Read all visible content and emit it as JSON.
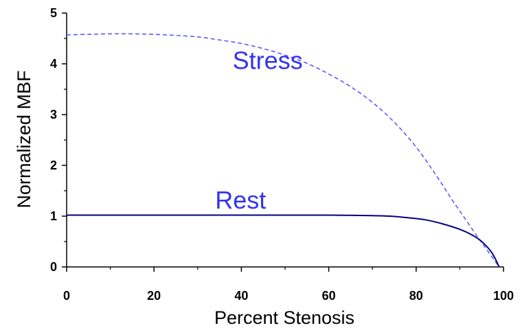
{
  "chart_data": {
    "type": "line",
    "title": "",
    "xlabel": "Percent Stenosis",
    "ylabel": "Normalized MBF",
    "xlim": [
      0,
      100
    ],
    "ylim": [
      0,
      5
    ],
    "xticks": [
      "0",
      "20",
      "40",
      "60",
      "80",
      "100"
    ],
    "yticks": [
      "0",
      "1",
      "2",
      "3",
      "4",
      "5"
    ],
    "grid": false,
    "series": [
      {
        "name": "Stress",
        "color": "#5a5aff",
        "line_style": "dashed",
        "x": [
          0,
          5,
          10,
          15,
          20,
          25,
          30,
          35,
          40,
          45,
          50,
          55,
          60,
          65,
          70,
          75,
          80,
          85,
          88,
          90,
          92,
          94,
          96,
          98,
          99
        ],
        "y": [
          4.57,
          4.58,
          4.59,
          4.59,
          4.58,
          4.56,
          4.53,
          4.47,
          4.4,
          4.3,
          4.17,
          4.01,
          3.8,
          3.55,
          3.24,
          2.85,
          2.36,
          1.75,
          1.35,
          1.1,
          0.85,
          0.6,
          0.36,
          0.12,
          0.0
        ]
      },
      {
        "name": "Rest",
        "color": "#000080",
        "line_style": "solid",
        "x": [
          0,
          10,
          20,
          30,
          40,
          50,
          60,
          70,
          74,
          78,
          82,
          86,
          90,
          93,
          95,
          97,
          98,
          99
        ],
        "y": [
          1.02,
          1.02,
          1.02,
          1.02,
          1.02,
          1.02,
          1.02,
          1.01,
          1.0,
          0.97,
          0.93,
          0.85,
          0.74,
          0.62,
          0.5,
          0.32,
          0.18,
          0.0
        ]
      }
    ],
    "annotations": [
      {
        "text": "Stress",
        "x": 38,
        "y": 3.9,
        "color": "#3333ee"
      },
      {
        "text": "Rest",
        "x": 34,
        "y": 1.15,
        "color": "#3333ee"
      }
    ]
  }
}
